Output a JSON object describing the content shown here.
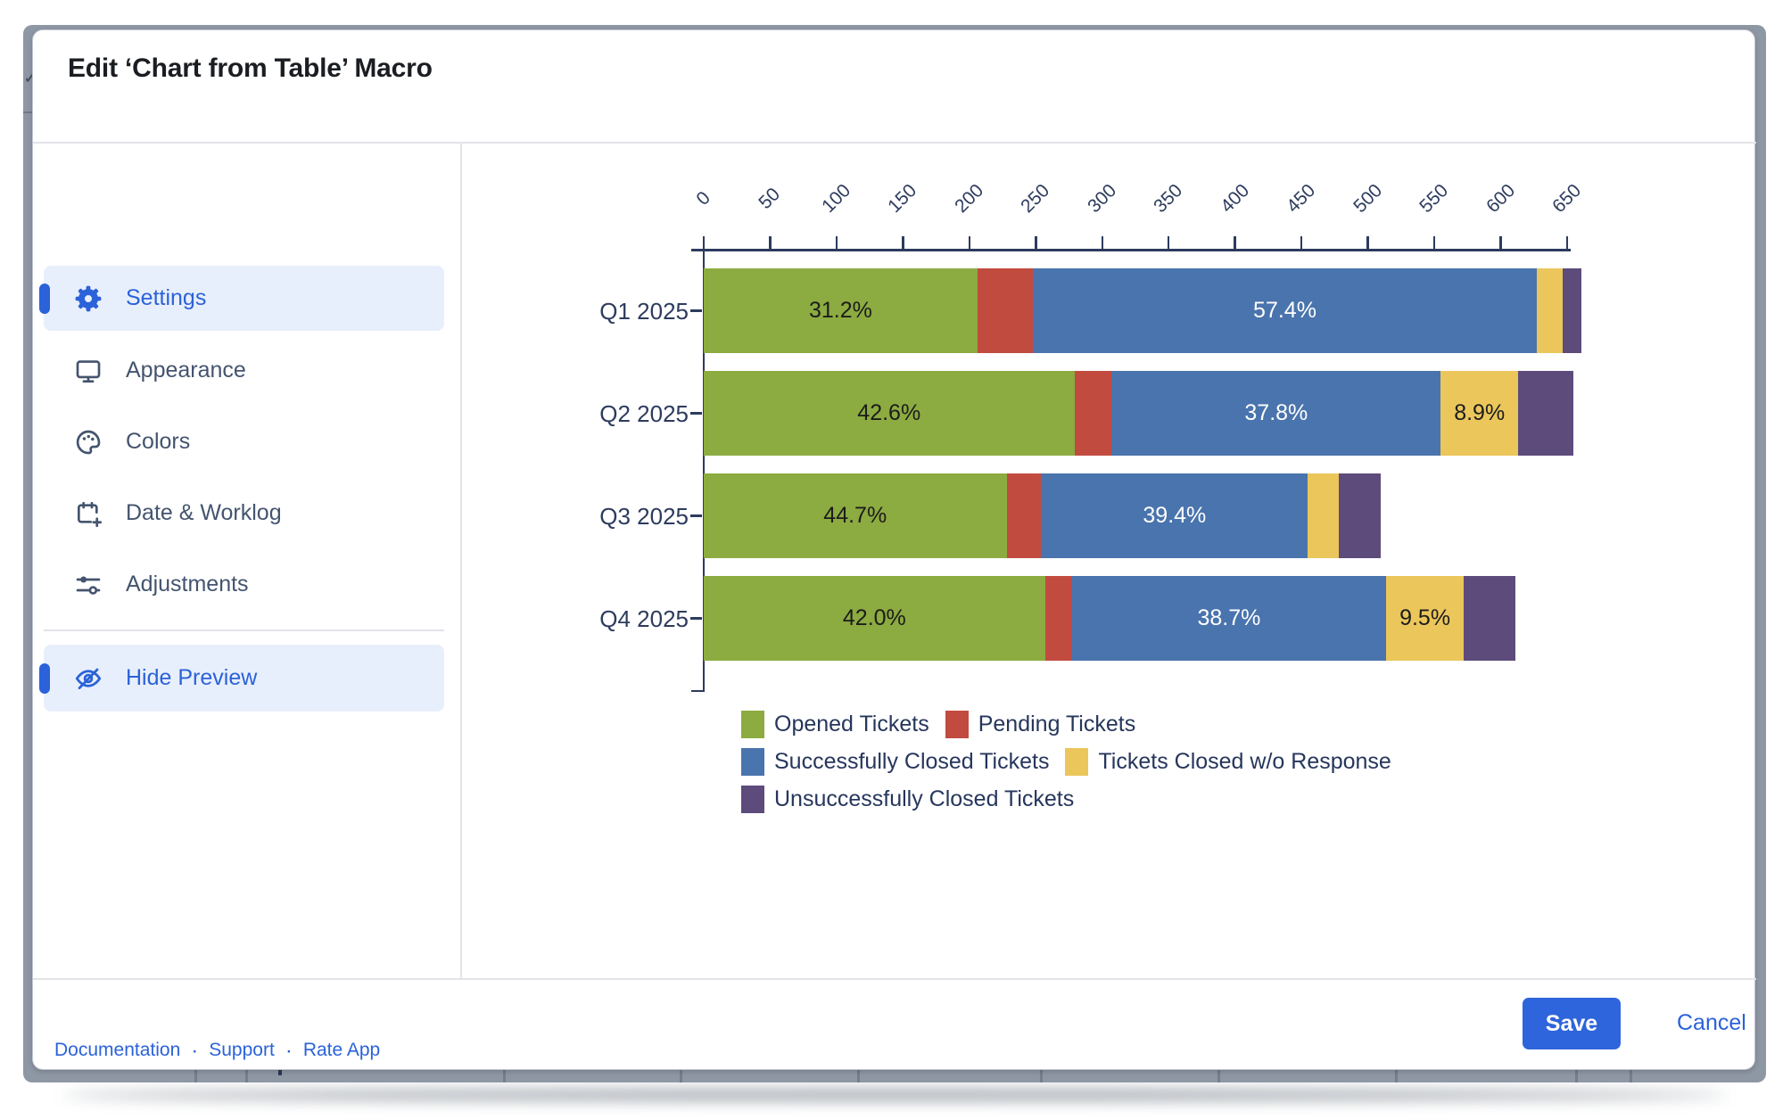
{
  "window": {
    "title": "Edit ‘Chart from Table’ Macro"
  },
  "sidebar": {
    "items": [
      {
        "label": "Settings",
        "icon": "gear-icon",
        "active": true
      },
      {
        "label": "Appearance",
        "icon": "monitor-icon",
        "active": false
      },
      {
        "label": "Colors",
        "icon": "palette-icon",
        "active": false
      },
      {
        "label": "Date & Worklog",
        "icon": "calendar-plus-icon",
        "active": false
      },
      {
        "label": "Adjustments",
        "icon": "sliders-icon",
        "active": false
      }
    ],
    "preview_toggle": {
      "label": "Hide Preview",
      "icon": "eye-off-icon",
      "active": true
    },
    "footer_links": [
      "Documentation",
      "Support",
      "Rate App"
    ],
    "link_separator": "·"
  },
  "footer": {
    "save_label": "Save",
    "cancel_label": "Cancel"
  },
  "colors": {
    "accent_blue": "#2b62d9",
    "active_item_bg": "#e8effc",
    "sidebar_text": "#44546F",
    "chart_text": "#2d3b5e",
    "save_button_bg": "#2e65dc"
  },
  "chart_data": {
    "type": "bar",
    "variant": "horizontal_stacked",
    "categories": [
      "Q1 2025",
      "Q2 2025",
      "Q3 2025",
      "Q4 2025"
    ],
    "series": [
      {
        "name": "Opened Tickets",
        "color": "#8cab40",
        "label_color": "#1c1c1c",
        "values": [
          206,
          279,
          228,
          257
        ],
        "labels": [
          "31.2%",
          "42.6%",
          "44.7%",
          "42.0%"
        ]
      },
      {
        "name": "Pending Tickets",
        "color": "#c24b40",
        "label_color": "#1c1c1c",
        "values": [
          42,
          28,
          26,
          20
        ],
        "labels": [
          "",
          "",
          "",
          ""
        ]
      },
      {
        "name": "Successfully Closed Tickets",
        "color": "#4a74ad",
        "label_color": "#ffffff",
        "values": [
          379,
          248,
          201,
          237
        ],
        "labels": [
          "57.4%",
          "37.8%",
          "39.4%",
          "38.7%"
        ]
      },
      {
        "name": "Tickets Closed w/o Response",
        "color": "#ebc65b",
        "label_color": "#1c1c1c",
        "values": [
          20,
          58,
          23,
          58
        ],
        "labels": [
          "",
          "8.9%",
          "",
          "9.5%"
        ]
      },
      {
        "name": "Unsuccessfully Closed Tickets",
        "color": "#5d4b7c",
        "label_color": "#ffffff",
        "values": [
          14,
          42,
          32,
          39
        ],
        "labels": [
          "",
          "",
          "",
          ""
        ]
      }
    ],
    "x_axis": {
      "min": 0,
      "max": 650,
      "step": 50,
      "position": "top",
      "tick_labels": [
        "0",
        "50",
        "100",
        "150",
        "200",
        "250",
        "300",
        "350",
        "400",
        "450",
        "500",
        "550",
        "600",
        "650"
      ]
    },
    "legend": {
      "position": "bottom",
      "rows": [
        [
          0,
          1
        ],
        [
          2,
          3
        ],
        [
          4
        ]
      ]
    }
  }
}
